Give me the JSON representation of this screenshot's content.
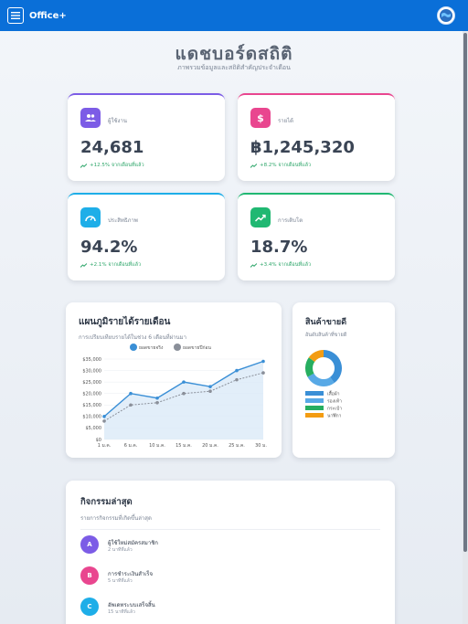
{
  "app": {
    "title": "Office+"
  },
  "header": {
    "title": "แดชบอร์ดสถิติ",
    "subtitle": "ภาพรวมข้อมูลและสถิติสำคัญประจำเดือน"
  },
  "stats": [
    {
      "label": "ผู้ใช้งาน",
      "value": "24,681",
      "change": "+12.5% จากเดือนที่แล้ว",
      "color": "#7c5ce6",
      "icon": "users-icon"
    },
    {
      "label": "รายได้",
      "value": "฿1,245,320",
      "change": "+8.2% จากเดือนที่แล้ว",
      "color": "#e9468f",
      "icon": "dollar-icon"
    },
    {
      "label": "ประสิทธิภาพ",
      "value": "94.2%",
      "change": "+2.1% จากเดือนที่แล้ว",
      "color": "#1eaee8",
      "icon": "gauge-icon"
    },
    {
      "label": "การเติบโต",
      "value": "18.7%",
      "change": "+3.4% จากเดือนที่แล้ว",
      "color": "#20b872",
      "icon": "trend-icon"
    }
  ],
  "revenue_chart": {
    "title": "แผนภูมิรายได้รายเดือน",
    "subtitle": "การเปรียบเทียบรายได้ในช่วง 6 เดือนที่ผ่านมา"
  },
  "product_chart": {
    "title": "สินค้าขายดี",
    "subtitle": "อันดับสินค้าที่ขายดี",
    "legend": [
      "เสื้อผ้า",
      "รองเท้า",
      "กระเป๋า",
      "นาฬิกา"
    ]
  },
  "chart_data": [
    {
      "type": "line",
      "x": [
        "1 ม.ค.",
        "6 ม.ค.",
        "10 ม.ค.",
        "15 ม.ค.",
        "20 ม.ค.",
        "25 ม.ค.",
        "30 ม.ค."
      ],
      "series": [
        {
          "name": "ยอดขายจริง",
          "color": "#3a8fd6",
          "values": [
            10000,
            20000,
            18000,
            25000,
            23000,
            30000,
            34000
          ]
        },
        {
          "name": "ยอดขายปีก่อน",
          "color": "#8a8f99",
          "values": [
            8000,
            15000,
            16000,
            20000,
            21000,
            26000,
            29000
          ]
        }
      ],
      "yticks": [
        "$0",
        "$5,000",
        "$10,000",
        "$15,000",
        "$20,000",
        "$25,000",
        "$30,000",
        "$35,000"
      ],
      "ylim": [
        0,
        35000
      ]
    },
    {
      "type": "pie",
      "categories": [
        "เสื้อผ้า",
        "รองเท้า",
        "กระเป๋า",
        "นาฬิกา"
      ],
      "values": [
        40,
        27,
        18,
        15
      ],
      "colors": [
        "#3a8fd6",
        "#58a9e6",
        "#27ae60",
        "#f39c12"
      ],
      "extra_colors": [
        "#9b59b6"
      ]
    }
  ],
  "activity": {
    "title": "กิจกรรมล่าสุด",
    "subtitle": "รายการกิจกรรมที่เกิดขึ้นล่าสุด",
    "items": [
      {
        "initial": "A",
        "text": "ผู้ใช้ใหม่สมัครสมาชิก",
        "time": "2 นาทีที่แล้ว",
        "color": "#7c5ce6"
      },
      {
        "initial": "B",
        "text": "การชำระเงินสำเร็จ",
        "time": "5 นาทีที่แล้ว",
        "color": "#e9468f"
      },
      {
        "initial": "C",
        "text": "อัพเดทระบบเสร็จสิ้น",
        "time": "15 นาทีที่แล้ว",
        "color": "#1eaee8"
      }
    ]
  }
}
